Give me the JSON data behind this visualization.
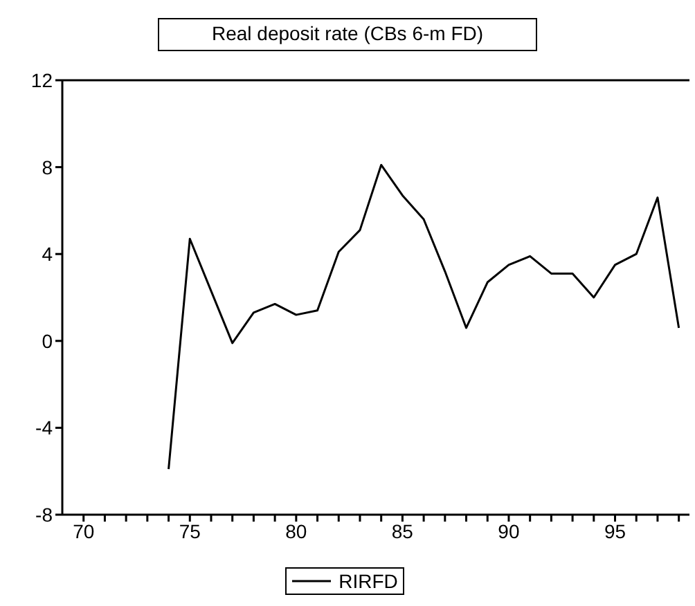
{
  "chart_data": {
    "type": "line",
    "title": "Real deposit rate (CBs 6-m FD)",
    "x": [
      74,
      75,
      76,
      77,
      78,
      79,
      80,
      81,
      82,
      83,
      84,
      85,
      86,
      87,
      88,
      89,
      90,
      91,
      92,
      93,
      94,
      95,
      96,
      97,
      98
    ],
    "series": [
      {
        "name": "RIRFD",
        "color": "#000000",
        "values": [
          -5.9,
          4.7,
          2.3,
          -0.1,
          1.3,
          1.7,
          1.2,
          1.4,
          4.1,
          5.1,
          8.1,
          6.7,
          5.6,
          3.2,
          0.6,
          2.7,
          3.5,
          3.9,
          3.1,
          3.1,
          2.0,
          3.5,
          4.0,
          6.6,
          0.6
        ]
      }
    ],
    "xlim": [
      69,
      98.5
    ],
    "xticks": [
      70,
      {
        "value": 71,
        "label": null
      },
      {
        "value": 72,
        "label": null
      },
      {
        "value": 73,
        "label": null
      },
      {
        "value": 74,
        "label": null
      },
      75,
      {
        "value": 76,
        "label": null
      },
      {
        "value": 77,
        "label": null
      },
      {
        "value": 78,
        "label": null
      },
      {
        "value": 79,
        "label": null
      },
      80,
      {
        "value": 81,
        "label": null
      },
      {
        "value": 82,
        "label": null
      },
      {
        "value": 83,
        "label": null
      },
      {
        "value": 84,
        "label": null
      },
      85,
      {
        "value": 86,
        "label": null
      },
      {
        "value": 87,
        "label": null
      },
      {
        "value": 88,
        "label": null
      },
      {
        "value": 89,
        "label": null
      },
      90,
      {
        "value": 91,
        "label": null
      },
      {
        "value": 92,
        "label": null
      },
      {
        "value": 93,
        "label": null
      },
      {
        "value": 94,
        "label": null
      },
      95,
      {
        "value": 96,
        "label": null
      },
      {
        "value": 97,
        "label": null
      },
      {
        "value": 98,
        "label": null
      }
    ],
    "ylim": [
      -8,
      12
    ],
    "yticks": [
      -8,
      -4,
      0,
      4,
      8,
      12
    ],
    "grid": false,
    "legend": "bottom",
    "marker": "none",
    "line_style": "solid"
  }
}
